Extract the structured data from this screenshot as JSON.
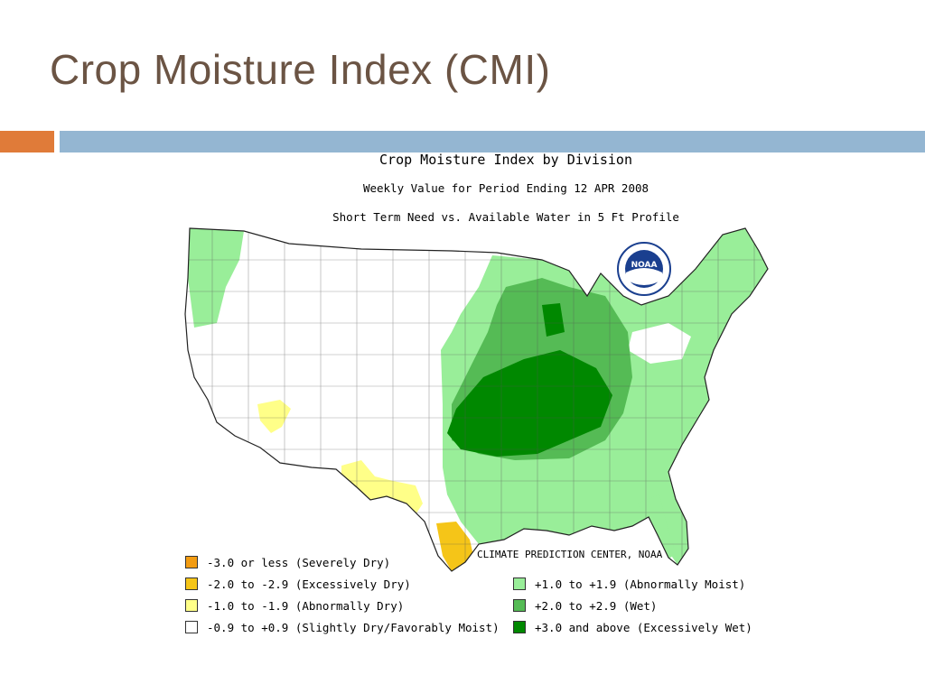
{
  "slide": {
    "title": "Crop Moisture Index (CMI)",
    "accent_orange": "#e07b39",
    "accent_blue": "#94b6d2",
    "title_color": "#6b5444"
  },
  "map": {
    "title": "Crop Moisture Index by Division",
    "subtitle": "Weekly Value for Period Ending 12 APR 2008",
    "subtitle2": "Short Term Need vs. Available Water in 5 Ft Profile",
    "credit": "CLIMATE PREDICTION CENTER, NOAA",
    "logo_text": "NOAA"
  },
  "legend": {
    "items": [
      {
        "label": "-3.0 or less (Severely Dry)",
        "color": "#f39c12"
      },
      {
        "label": "-2.0 to -2.9 (Excessively Dry)",
        "color": "#f5c518"
      },
      {
        "label": "-1.0 to -1.9 (Abnormally Dry)",
        "color": "#ffff88"
      },
      {
        "label": "-0.9 to +0.9 (Slightly Dry/Favorably Moist)",
        "color": "#ffffff"
      },
      {
        "label": "+1.0 to +1.9 (Abnormally Moist)",
        "color": "#99ee99"
      },
      {
        "label": "+2.0 to +2.9 (Wet)",
        "color": "#55bb55"
      },
      {
        "label": "+3.0 and above (Excessively Wet)",
        "color": "#008800"
      }
    ]
  }
}
